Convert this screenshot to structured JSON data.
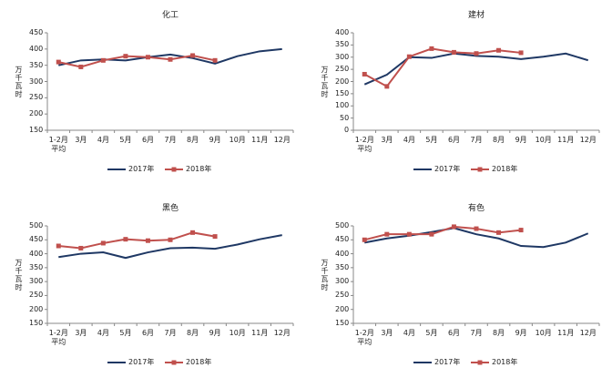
{
  "chart_data": [
    {
      "type": "line",
      "title": "化工",
      "y_label": "万千瓦时",
      "categories": [
        "1-2月\n平均",
        "3月",
        "4月",
        "5月",
        "6月",
        "7月",
        "8月",
        "9月",
        "10月",
        "11月",
        "12月"
      ],
      "ylim": [
        150,
        450
      ],
      "yticks": [
        150,
        200,
        250,
        300,
        350,
        400,
        450
      ],
      "grid": false,
      "legend": "bottom",
      "series": [
        {
          "name": "2017年",
          "color": "#1f3864",
          "marker": "none",
          "values": [
            350,
            365,
            368,
            365,
            375,
            383,
            372,
            355,
            378,
            393,
            400
          ]
        },
        {
          "name": "2018年",
          "color": "#c0504d",
          "marker": "square",
          "values": [
            360,
            345,
            365,
            378,
            375,
            368,
            380,
            365,
            null,
            null,
            null
          ]
        }
      ]
    },
    {
      "type": "line",
      "title": "建材",
      "y_label": "万千瓦时",
      "categories": [
        "1-2月\n平均",
        "3月",
        "4月",
        "5月",
        "6月",
        "7月",
        "8月",
        "9月",
        "10月",
        "11月",
        "12月"
      ],
      "ylim": [
        0,
        400
      ],
      "yticks": [
        0,
        50,
        100,
        150,
        200,
        250,
        300,
        350,
        400
      ],
      "grid": false,
      "legend": "bottom",
      "series": [
        {
          "name": "2017年",
          "color": "#1f3864",
          "marker": "none",
          "values": [
            188,
            228,
            300,
            297,
            315,
            305,
            302,
            292,
            302,
            315,
            287
          ]
        },
        {
          "name": "2018年",
          "color": "#c0504d",
          "marker": "square",
          "values": [
            230,
            180,
            302,
            335,
            320,
            315,
            328,
            318,
            null,
            null,
            null
          ]
        }
      ]
    },
    {
      "type": "line",
      "title": "黑色",
      "y_label": "万千瓦时",
      "categories": [
        "1-2月\n平均",
        "3月",
        "4月",
        "5月",
        "6月",
        "7月",
        "8月",
        "9月",
        "10月",
        "11月",
        "12月"
      ],
      "ylim": [
        150,
        500
      ],
      "yticks": [
        150,
        200,
        250,
        300,
        350,
        400,
        450,
        500
      ],
      "grid": false,
      "legend": "bottom",
      "series": [
        {
          "name": "2017年",
          "color": "#1f3864",
          "marker": "none",
          "values": [
            388,
            400,
            405,
            385,
            405,
            420,
            422,
            418,
            433,
            452,
            467
          ]
        },
        {
          "name": "2018年",
          "color": "#c0504d",
          "marker": "square",
          "values": [
            428,
            420,
            438,
            452,
            447,
            450,
            476,
            462,
            null,
            null,
            null
          ]
        }
      ]
    },
    {
      "type": "line",
      "title": "有色",
      "y_label": "万千瓦时",
      "categories": [
        "1-2月\n平均",
        "3月",
        "4月",
        "5月",
        "6月",
        "7月",
        "8月",
        "9月",
        "10月",
        "11月",
        "12月"
      ],
      "ylim": [
        150,
        500
      ],
      "yticks": [
        150,
        200,
        250,
        300,
        350,
        400,
        450,
        500
      ],
      "grid": false,
      "legend": "bottom",
      "series": [
        {
          "name": "2017年",
          "color": "#1f3864",
          "marker": "none",
          "values": [
            440,
            455,
            465,
            478,
            492,
            470,
            455,
            428,
            424,
            440,
            473
          ]
        },
        {
          "name": "2018年",
          "color": "#c0504d",
          "marker": "square",
          "values": [
            450,
            470,
            470,
            470,
            497,
            490,
            476,
            485,
            null,
            null,
            null
          ]
        }
      ]
    }
  ]
}
